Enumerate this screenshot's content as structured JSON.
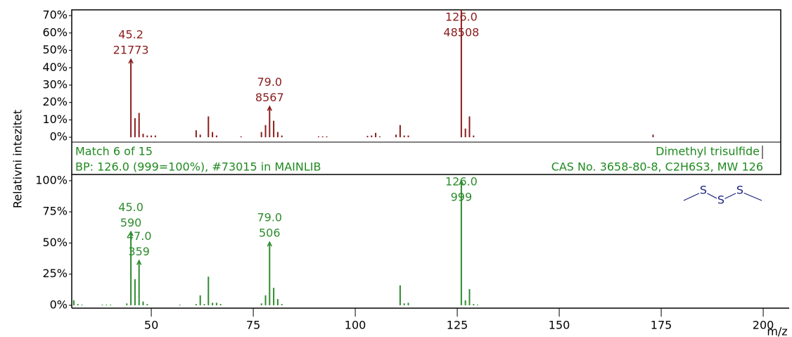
{
  "header": {
    "match": "Match 6 of 15",
    "name": "Dimethyl trisulfide",
    "base_peak": "BP: 126.0 (999=100%),  #73015 in MAINLIB",
    "info": "CAS No. 3658-80-8, C2H6S3, MW 126",
    "structure_atoms": [
      "S",
      "S",
      "S"
    ]
  },
  "chart_data": [
    {
      "type": "stick",
      "ylabel": "Relativni intezitet",
      "color": "#8b1c1c",
      "x": [
        45,
        46,
        47,
        48,
        49,
        50,
        51,
        61,
        62,
        64,
        65,
        66,
        72,
        77,
        78,
        79,
        80,
        81,
        82,
        91,
        92,
        93,
        103,
        104,
        105,
        106,
        110,
        111,
        112,
        113,
        126,
        127,
        128,
        129,
        173
      ],
      "values": [
        44.9,
        11,
        14,
        2,
        1,
        1,
        1,
        4,
        1.5,
        12,
        3,
        1,
        0.5,
        3,
        7,
        17.7,
        9.5,
        3,
        1,
        0.5,
        0.5,
        0.5,
        0.8,
        1,
        2.5,
        0.5,
        1.5,
        7,
        1,
        1,
        100,
        5,
        12,
        1,
        1.5
      ],
      "xlim": [
        30.5,
        204.3
      ],
      "ylim": [
        -2.8,
        73.3
      ],
      "yticks": [
        {
          "value": 0,
          "label": "0%"
        },
        {
          "value": 10,
          "label": "10%"
        },
        {
          "value": 20,
          "label": "20%"
        },
        {
          "value": 30,
          "label": "30%"
        },
        {
          "value": 40,
          "label": "40%"
        },
        {
          "value": 50,
          "label": "50%"
        },
        {
          "value": 60,
          "label": "60%"
        },
        {
          "value": 70,
          "label": "70%"
        }
      ],
      "annotations": [
        {
          "mz": "45.2",
          "abundance": 21773
        },
        {
          "mz": "79.0",
          "abundance": 8567
        },
        {
          "mz": "126.0",
          "abundance": 48508
        }
      ]
    },
    {
      "type": "stick",
      "xlabel": "m/z",
      "color": "#2e8b2e",
      "x": [
        31,
        32,
        33,
        38,
        39,
        40,
        44,
        45,
        46,
        47,
        48,
        49,
        57,
        61,
        62,
        63,
        64,
        65,
        66,
        67,
        77,
        78,
        79,
        80,
        81,
        82,
        111,
        112,
        113,
        126,
        127,
        128,
        129,
        130
      ],
      "values": [
        4,
        1,
        0.5,
        0.5,
        0.5,
        0.5,
        1.5,
        59.1,
        21,
        35.9,
        3,
        1,
        0.5,
        1,
        8,
        1,
        23,
        2,
        2,
        1,
        1.5,
        8,
        50.7,
        14,
        5,
        1,
        16,
        1.5,
        2,
        100,
        4,
        13,
        1,
        0.5
      ],
      "xlim": [
        30.5,
        204.3
      ],
      "ylim": [
        -2.3,
        105
      ],
      "xticks": [
        50,
        75,
        100,
        125,
        150,
        175,
        200
      ],
      "yticks": [
        {
          "value": 0,
          "label": "0%"
        },
        {
          "value": 25,
          "label": "25%"
        },
        {
          "value": 50,
          "label": "50%"
        },
        {
          "value": 75,
          "label": "75%"
        },
        {
          "value": 100,
          "label": "100%"
        }
      ],
      "annotations": [
        {
          "mz": "45.0",
          "abundance": 590
        },
        {
          "mz": "47.0",
          "abundance": 359
        },
        {
          "mz": "79.0",
          "abundance": 506
        },
        {
          "mz": "126.0",
          "abundance": 999
        }
      ]
    }
  ]
}
